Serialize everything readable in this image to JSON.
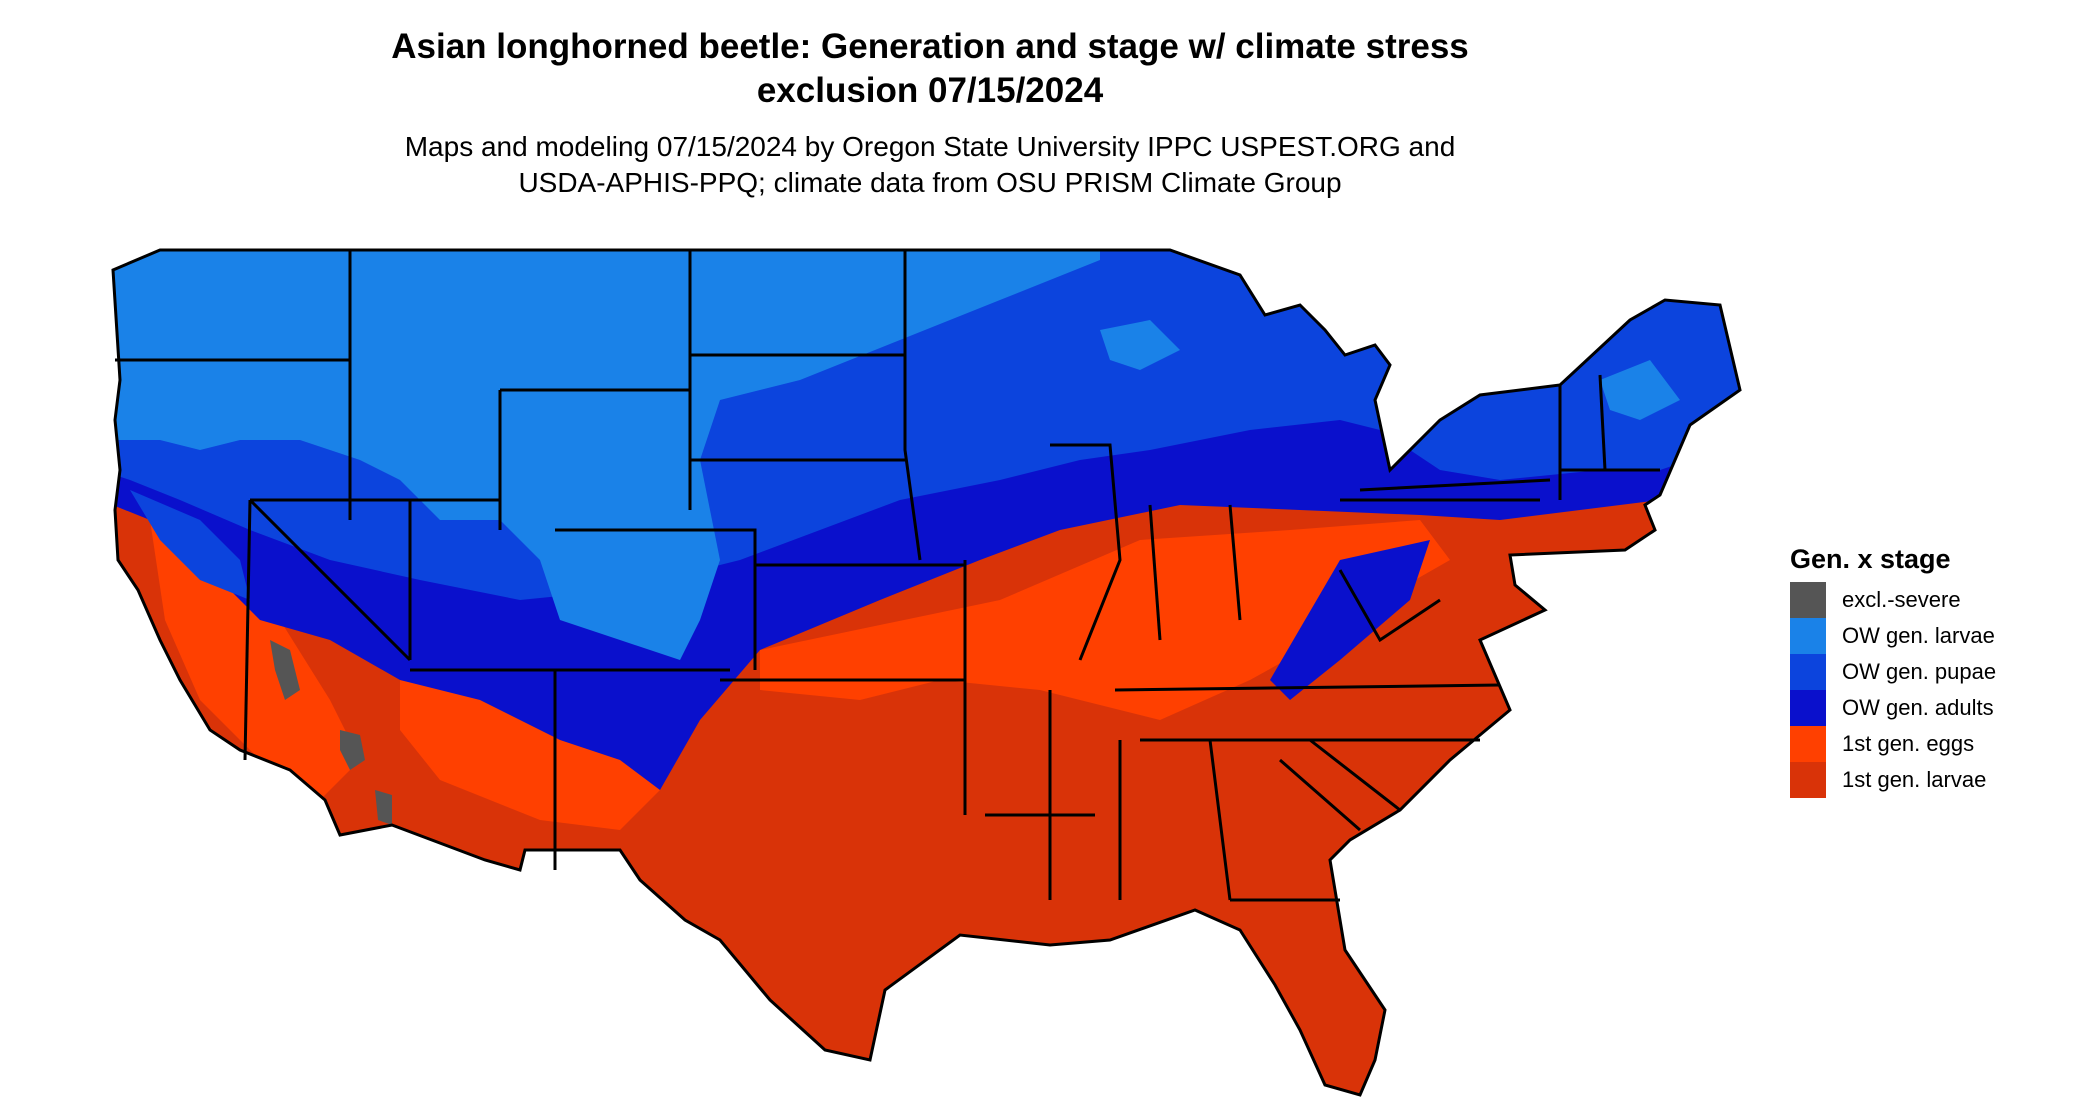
{
  "title_line1": "Asian longhorned beetle: Generation and stage w/ climate stress",
  "title_line2": "exclusion 07/15/2024",
  "subtitle_line1": "Maps and modeling 07/15/2024 by Oregon State University IPPC USPEST.ORG and",
  "subtitle_line2": "USDA-APHIS-PPQ; climate data from OSU PRISM Climate Group",
  "legend": {
    "title": "Gen. x stage",
    "items": [
      {
        "label": "excl.-severe",
        "color": "#555555"
      },
      {
        "label": "OW gen. larvae",
        "color": "#1a82e8"
      },
      {
        "label": "OW gen. pupae",
        "color": "#0c44dd"
      },
      {
        "label": "OW gen. adults",
        "color": "#0a10cc"
      },
      {
        "label": "1st gen. eggs",
        "color": "#ff4000"
      },
      {
        "label": "1st gen. larvae",
        "color": "#d93308"
      }
    ]
  }
}
